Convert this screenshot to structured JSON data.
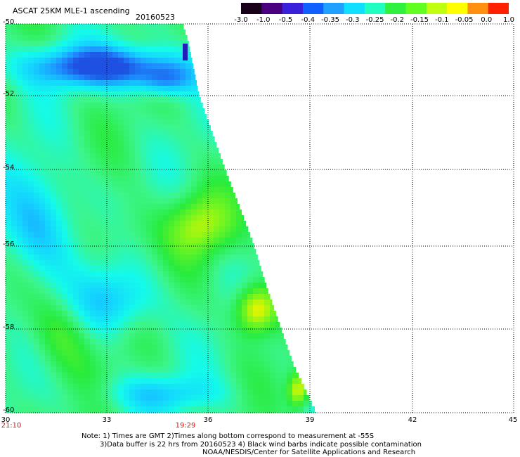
{
  "header": {
    "title": "ASCAT 25KM MLE-1 ascending",
    "date": "20160523"
  },
  "colorbar": {
    "labels": [
      "-3.0",
      "-1.0",
      "-0.5",
      "-0.4",
      "-0.35",
      "-0.3",
      "-0.25",
      "-0.2",
      "-0.15",
      "-0.1",
      "-0.05",
      "0.0",
      "1.0"
    ],
    "colors": [
      "#180018",
      "#4a007e",
      "#3a20d8",
      "#1060ff",
      "#20a0ff",
      "#10e0ff",
      "#20ffc0",
      "#30f040",
      "#60ff20",
      "#c0ff10",
      "#ffff00",
      "#ff9010",
      "#ff2000"
    ]
  },
  "map": {
    "lon_range": [
      30,
      45
    ],
    "lat_range": [
      -60,
      -50
    ],
    "lon_ticks": [
      "30",
      "33",
      "36",
      "39",
      "42",
      "45"
    ],
    "lat_ticks": [
      "-50",
      "-52",
      "-54",
      "-56",
      "-58",
      "-60"
    ],
    "time_labels": [
      {
        "text": "21:10",
        "lon": 30
      },
      {
        "text": "19:29",
        "lon": 35.3
      }
    ]
  },
  "footer": {
    "note_line1": "Note: 1) Times are GMT 2)Times along bottom correspond to measurement at -55S",
    "note_line2": "3)Data buffer is 22 hrs from 20160523 4) Black wind barbs indicate possible contamination",
    "credit": "NOAA/NESDIS/Center for Satellite Applications and Research"
  }
}
